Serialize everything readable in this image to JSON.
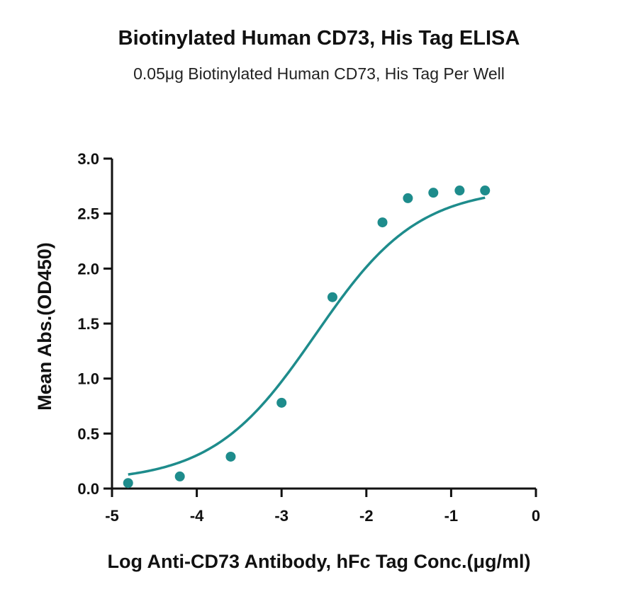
{
  "chart_data": {
    "type": "scatter",
    "title": "Biotinylated Human CD73, His Tag ELISA",
    "subtitle": "0.05μg Biotinylated Human CD73, His Tag Per Well",
    "xlabel": "Log Anti-CD73 Antibody, hFc Tag Conc.(μg/ml)",
    "ylabel": "Mean Abs.(OD450)",
    "xlim": [
      -5,
      0
    ],
    "ylim": [
      0,
      3.0
    ],
    "x_ticks": [
      -5,
      -4,
      -3,
      -2,
      -1,
      0
    ],
    "x_tick_labels": [
      "-5",
      "-4",
      "-3",
      "-2",
      "-1",
      "0"
    ],
    "y_ticks": [
      0,
      0.5,
      1.0,
      1.5,
      2.0,
      2.5,
      3.0
    ],
    "y_tick_labels": [
      "0.0",
      "0.5",
      "1.0",
      "1.5",
      "2.0",
      "2.5",
      "3.0"
    ],
    "grid": false,
    "color": "#1e8c8c",
    "series": [
      {
        "x": [
          -4.81,
          -4.2,
          -3.6,
          -3.0,
          -2.4,
          -1.81,
          -1.51,
          -1.21,
          -0.9,
          -0.6
        ],
        "y": [
          0.05,
          0.11,
          0.29,
          0.78,
          1.74,
          2.42,
          2.64,
          2.69,
          2.71,
          2.71
        ],
        "fit": "4PL sigmoid"
      }
    ]
  }
}
